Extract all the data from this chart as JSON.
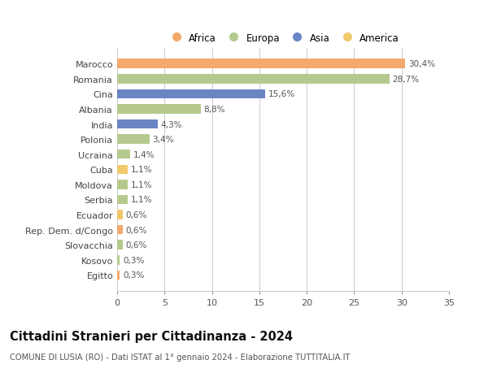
{
  "categories": [
    "Marocco",
    "Romania",
    "Cina",
    "Albania",
    "India",
    "Polonia",
    "Ucraina",
    "Cuba",
    "Moldova",
    "Serbia",
    "Ecuador",
    "Rep. Dem. d/Congo",
    "Slovacchia",
    "Kosovo",
    "Egitto"
  ],
  "values": [
    30.4,
    28.7,
    15.6,
    8.8,
    4.3,
    3.4,
    1.4,
    1.1,
    1.1,
    1.1,
    0.6,
    0.6,
    0.6,
    0.3,
    0.3
  ],
  "labels": [
    "30,4%",
    "28,7%",
    "15,6%",
    "8,8%",
    "4,3%",
    "3,4%",
    "1,4%",
    "1,1%",
    "1,1%",
    "1,1%",
    "0,6%",
    "0,6%",
    "0,6%",
    "0,3%",
    "0,3%"
  ],
  "colors": [
    "#F4A96D",
    "#B5C98E",
    "#6B85C4",
    "#B5C98E",
    "#6B85C4",
    "#B5C98E",
    "#B5C98E",
    "#F0C96A",
    "#B5C98E",
    "#B5C98E",
    "#F0C96A",
    "#F4A96D",
    "#B5C98E",
    "#B5C98E",
    "#F4A96D"
  ],
  "legend_labels": [
    "Africa",
    "Europa",
    "Asia",
    "America"
  ],
  "legend_colors": [
    "#F4A96D",
    "#B5C98E",
    "#6B85C4",
    "#F0C96A"
  ],
  "xlim": [
    0,
    35
  ],
  "xticks": [
    0,
    5,
    10,
    15,
    20,
    25,
    30,
    35
  ],
  "title": "Cittadini Stranieri per Cittadinanza - 2024",
  "subtitle": "COMUNE DI LUSIA (RO) - Dati ISTAT al 1° gennaio 2024 - Elaborazione TUTTITALIA.IT",
  "bg_color": "#ffffff",
  "grid_color": "#cccccc",
  "bar_height": 0.62,
  "label_fontsize": 7.5,
  "ytick_fontsize": 8.0,
  "xtick_fontsize": 8.0,
  "title_fontsize": 10.5,
  "subtitle_fontsize": 7.2
}
